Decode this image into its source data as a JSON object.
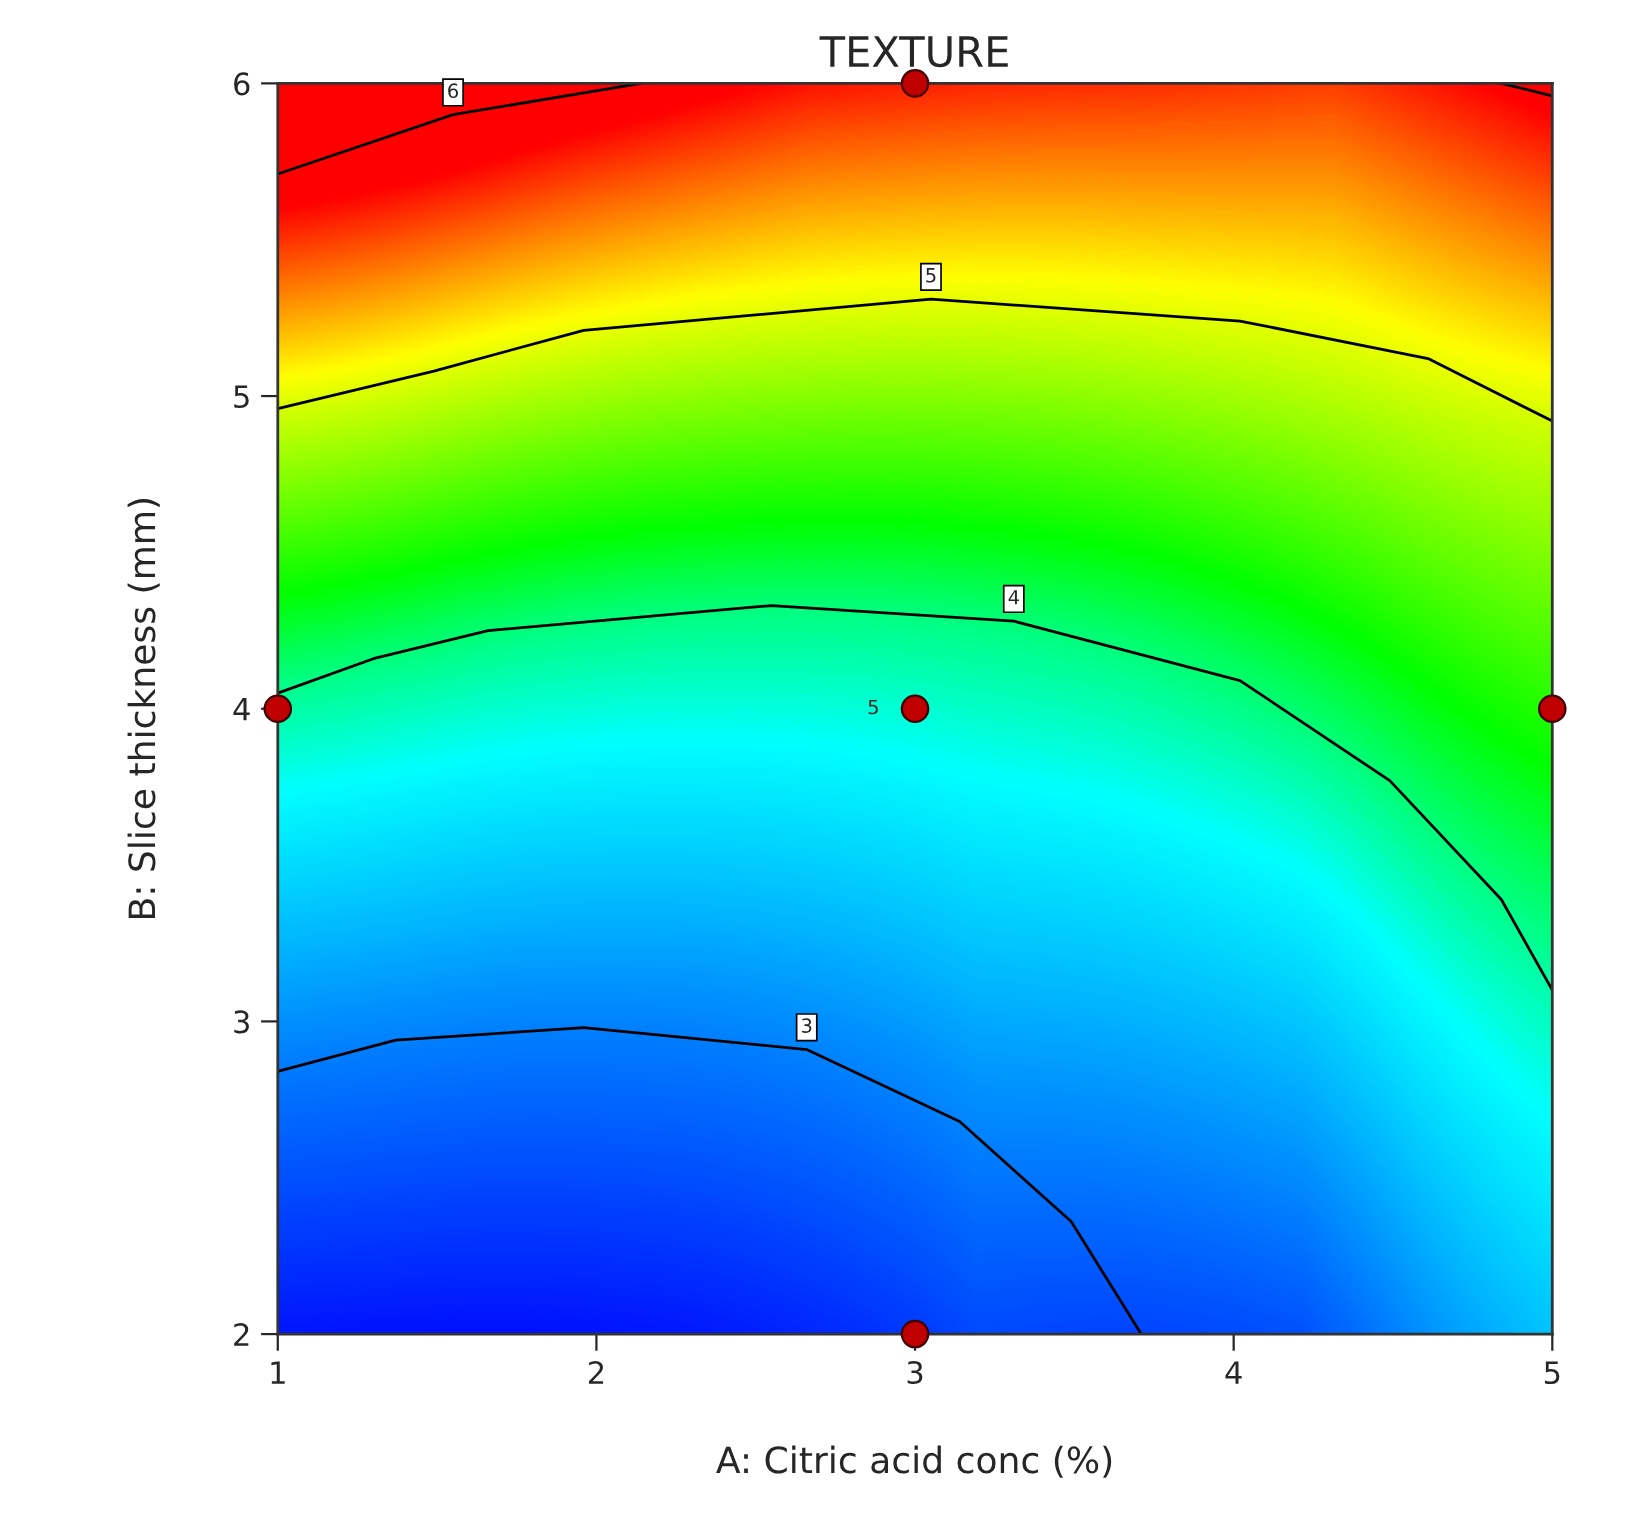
{
  "chart_data": {
    "type": "line",
    "title": "TEXTURE",
    "xlabel": "A: Citric acid conc (%)",
    "ylabel": "B: Slice thickness (mm)",
    "series": [
      {
        "color": "#000000",
        "x": [
          1,
          1.37,
          1.96,
          2.66,
          3.14,
          3.49,
          3.71
        ],
        "values": [
          2.84,
          2.94,
          2.98,
          2.91,
          2.68,
          2.36,
          2
        ]
      },
      {
        "color": "#000000",
        "x": [
          1,
          1.3,
          1.66,
          2.55,
          3.31,
          4.02,
          4.49,
          4.84,
          5
        ],
        "values": [
          4.05,
          4.16,
          4.25,
          4.33,
          4.28,
          4.09,
          3.77,
          3.39,
          3.1
        ]
      },
      {
        "color": "#000000",
        "x": [
          1,
          1.49,
          1.96,
          3.05,
          4.02,
          4.61,
          5
        ],
        "values": [
          4.96,
          5.08,
          5.21,
          5.31,
          5.24,
          5.12,
          4.92
        ]
      },
      {
        "color": "#000000",
        "x": [
          1,
          1.55,
          2.14,
          3.5,
          4.84,
          5
        ],
        "values": [
          5.71,
          5.9,
          6,
          null,
          6,
          5.96
        ]
      },
      {
        "type": "scatter",
        "marker": "circle",
        "color": "#c00000",
        "x": [
          1,
          3,
          3,
          5,
          3
        ],
        "values": [
          4,
          6,
          4,
          4,
          2
        ]
      }
    ],
    "annotations": [
      {
        "text": "3",
        "x": 2.66,
        "y": 2.91
      },
      {
        "text": "4",
        "x": 3.31,
        "y": 4.28
      },
      {
        "text": "5",
        "x": 3.05,
        "y": 5.31
      },
      {
        "text": "6",
        "x": 1.55,
        "y": 5.9
      },
      {
        "text": "5",
        "x": 3,
        "y": 4
      }
    ],
    "xlim": [
      1,
      5
    ],
    "ylim": [
      2,
      6
    ],
    "xticks": [
      1,
      2,
      3,
      4,
      5
    ],
    "yticks": [
      2,
      3,
      4,
      5,
      6
    ]
  }
}
